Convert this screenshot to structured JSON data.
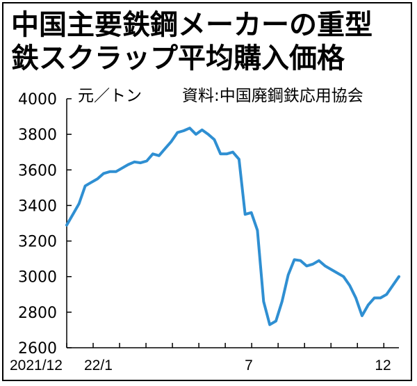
{
  "title": {
    "line1": "中国主要鉄鋼メーカーの重型",
    "line2": "鉄スクラップ平均購入価格"
  },
  "unit": "元／トン",
  "source": "資料:中国廃鋼鉄応用協会",
  "colors": {
    "line": "#2f8fd2",
    "axis": "#000000"
  },
  "chart_data": {
    "type": "line",
    "title": "中国主要鉄鋼メーカーの重型鉄スクラップ平均購入価格",
    "ylabel": "元／トン",
    "xlabel": "",
    "ylim": [
      2600,
      4000
    ],
    "yticks": [
      2600,
      2800,
      3000,
      3200,
      3400,
      3600,
      3800,
      4000
    ],
    "xlim": [
      0,
      52
    ],
    "xticks": [
      {
        "label": "2021/12",
        "x": 0
      },
      {
        "label": "22/1",
        "x": 4
      },
      {
        "label": "7",
        "x": 28.5
      },
      {
        "label": "12",
        "x": 49.5
      }
    ],
    "grid": false,
    "series": [
      {
        "name": "",
        "values": [
          3290,
          3350,
          3410,
          3510,
          3530,
          3550,
          3580,
          3590,
          3590,
          3610,
          3630,
          3645,
          3640,
          3650,
          3690,
          3680,
          3720,
          3760,
          3810,
          3820,
          3835,
          3800,
          3825,
          3800,
          3770,
          3690,
          3690,
          3700,
          3660,
          3350,
          3360,
          3260,
          2860,
          2730,
          2750,
          2860,
          3010,
          3095,
          3090,
          3060,
          3070,
          3090,
          3060,
          3040,
          3020,
          3000,
          2950,
          2880,
          2780,
          2840,
          2880,
          2880,
          2900,
          2950,
          3000
        ]
      }
    ]
  }
}
